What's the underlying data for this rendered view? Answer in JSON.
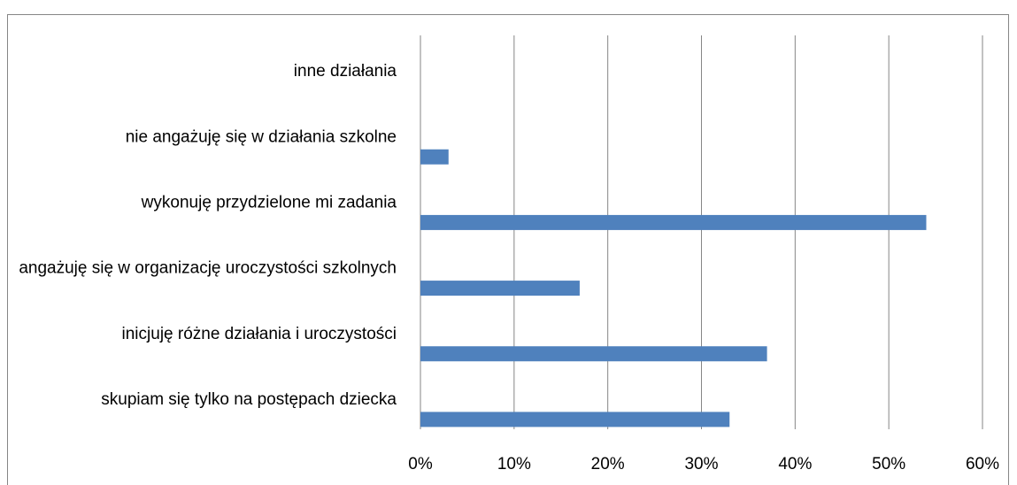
{
  "chart_data": {
    "type": "bar",
    "orientation": "horizontal",
    "categories": [
      "inne działania",
      "nie angażuję się w działania szkolne",
      "wykonuję przydzielone mi zadania",
      "angażuję się w organizację uroczystości szkolnych",
      "inicjuję różne działania i uroczystości",
      "skupiam się tylko na postępach dziecka"
    ],
    "values": [
      0,
      3,
      54,
      17,
      37,
      33
    ],
    "color": "#4f81bd",
    "xlim": [
      0,
      60
    ],
    "xticks": [
      {
        "value": 0,
        "label": "0%"
      },
      {
        "value": 10,
        "label": "10%"
      },
      {
        "value": 20,
        "label": "20%"
      },
      {
        "value": 30,
        "label": "30%"
      },
      {
        "value": 40,
        "label": "40%"
      },
      {
        "value": 50,
        "label": "50%"
      },
      {
        "value": 60,
        "label": "60%"
      }
    ],
    "grid": true
  }
}
